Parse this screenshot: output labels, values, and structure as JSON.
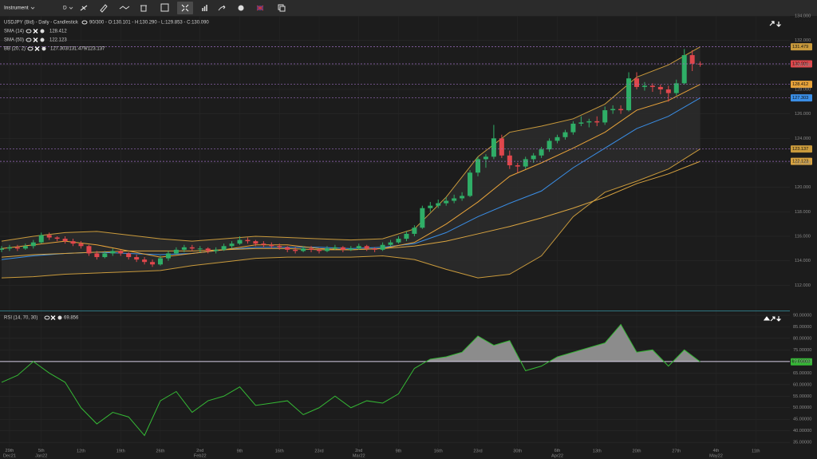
{
  "toolbar": {
    "instrument": "Instrument",
    "timeframe": "D"
  },
  "chart_data": [
    {
      "type": "candlestick",
      "title": "USDJPY (Bid) - Daily - Candlestick",
      "ohlc_info": "90/300 - O:130.101 - H:130.290 - L:129.853 - C:130.090",
      "categories": [
        null,
        "29th Dec21",
        null,
        null,
        null,
        "5th Jan22",
        null,
        null,
        null,
        null,
        "12th",
        null,
        null,
        null,
        null,
        "19th",
        null,
        null,
        null,
        null,
        "26th",
        null,
        null,
        null,
        null,
        "2nd Feb22",
        null,
        null,
        null,
        null,
        "9th",
        null,
        null,
        null,
        null,
        "16th",
        null,
        null,
        null,
        null,
        "23rd",
        null,
        null,
        null,
        null,
        "2nd Mar22",
        null,
        null,
        null,
        null,
        "9th",
        null,
        null,
        null,
        null,
        "16th",
        null,
        null,
        null,
        null,
        "23rd",
        null,
        null,
        null,
        null,
        "30th",
        null,
        null,
        null,
        null,
        "6th Apr22",
        null,
        null,
        null,
        null,
        "13th",
        null,
        null,
        null,
        null,
        "20th",
        null,
        null,
        null,
        null,
        "27th",
        null,
        null,
        null,
        null,
        "4th May22",
        null,
        null,
        null,
        null,
        "11th"
      ],
      "open": [
        114.9,
        115.0,
        115.1,
        115.0,
        115.2,
        115.5,
        116.1,
        115.9,
        115.8,
        115.6,
        115.4,
        115.2,
        114.6,
        114.3,
        114.6,
        114.8,
        114.6,
        114.3,
        114.1,
        113.9,
        113.7,
        114.2,
        114.6,
        114.9,
        115.1,
        115.0,
        115.0,
        114.8,
        114.9,
        115.2,
        115.4,
        115.7,
        115.6,
        115.4,
        115.3,
        115.2,
        115.1,
        114.9,
        114.8,
        115.0,
        114.9,
        114.8,
        115.0,
        115.1,
        114.9,
        115.0,
        115.2,
        115.0,
        114.9,
        115.3,
        115.5,
        115.8,
        116.2,
        116.7,
        118.3,
        118.5,
        118.7,
        118.9,
        119.1,
        119.3,
        121.2,
        122.3,
        122.5,
        124.0,
        122.6,
        121.8,
        121.7,
        122.3,
        122.6,
        123.1,
        123.8,
        124.1,
        124.5,
        125.2,
        125.3,
        125.4,
        125.3,
        126.3,
        126.4,
        126.3,
        128.9,
        128.2,
        128.3,
        128.2,
        128.0,
        127.7,
        128.5,
        130.8,
        130.101,
        null,
        null,
        null,
        null,
        null,
        null,
        null
      ],
      "high": [
        115.2,
        115.3,
        115.3,
        115.4,
        115.7,
        116.3,
        116.3,
        116.0,
        116.0,
        115.8,
        115.6,
        115.3,
        114.8,
        114.8,
        115.0,
        114.9,
        114.7,
        114.5,
        114.3,
        114.1,
        114.4,
        114.8,
        115.1,
        115.3,
        115.3,
        115.2,
        115.1,
        115.1,
        115.4,
        115.6,
        116.0,
        115.9,
        115.7,
        115.6,
        115.5,
        115.4,
        115.2,
        115.1,
        115.2,
        115.2,
        115.0,
        115.2,
        115.3,
        115.2,
        115.2,
        115.4,
        115.3,
        115.1,
        115.5,
        115.7,
        116.0,
        116.4,
        116.9,
        118.5,
        118.8,
        119.0,
        119.2,
        119.4,
        119.6,
        121.4,
        122.5,
        122.7,
        125.1,
        124.3,
        123.0,
        122.0,
        122.5,
        122.8,
        123.3,
        124.0,
        124.3,
        124.7,
        125.4,
        125.8,
        125.6,
        125.8,
        126.6,
        126.7,
        126.7,
        129.4,
        129.4,
        128.6,
        128.5,
        128.4,
        128.3,
        128.8,
        131.3,
        131.2,
        130.29,
        null,
        null,
        null,
        null,
        null,
        null,
        null
      ],
      "low": [
        114.7,
        114.8,
        114.8,
        114.9,
        115.0,
        115.4,
        115.7,
        115.6,
        115.4,
        115.2,
        115.0,
        114.4,
        114.1,
        114.2,
        114.4,
        114.4,
        114.1,
        113.9,
        113.7,
        113.5,
        113.6,
        114.0,
        114.5,
        114.7,
        114.8,
        114.7,
        114.6,
        114.6,
        114.8,
        115.0,
        115.3,
        115.4,
        115.2,
        115.1,
        115.0,
        114.9,
        114.7,
        114.6,
        114.7,
        114.7,
        114.6,
        114.7,
        114.9,
        114.7,
        114.8,
        114.9,
        114.8,
        114.7,
        114.8,
        115.2,
        115.4,
        115.6,
        116.0,
        116.6,
        118.0,
        118.3,
        118.5,
        118.7,
        118.9,
        119.2,
        120.9,
        121.6,
        122.3,
        122.4,
        121.5,
        121.2,
        121.5,
        122.0,
        122.4,
        122.9,
        123.6,
        123.9,
        124.3,
        125.0,
        124.9,
        125.0,
        125.1,
        126.0,
        126.0,
        126.2,
        128.0,
        127.9,
        127.8,
        127.6,
        127.0,
        127.5,
        128.4,
        129.5,
        129.853,
        null,
        null,
        null,
        null,
        null,
        null,
        null
      ],
      "close": [
        115.0,
        115.1,
        115.0,
        115.2,
        115.5,
        116.1,
        115.9,
        115.8,
        115.6,
        115.4,
        115.2,
        114.6,
        114.3,
        114.6,
        114.8,
        114.6,
        114.3,
        114.1,
        113.9,
        113.7,
        114.2,
        114.6,
        114.9,
        115.1,
        115.0,
        115.0,
        114.8,
        114.9,
        115.2,
        115.4,
        115.7,
        115.6,
        115.4,
        115.3,
        115.2,
        115.1,
        114.9,
        114.8,
        115.0,
        114.9,
        114.8,
        115.0,
        115.1,
        114.9,
        115.0,
        115.2,
        115.0,
        114.9,
        115.3,
        115.5,
        115.8,
        116.2,
        116.7,
        118.3,
        118.5,
        118.7,
        118.9,
        119.1,
        119.3,
        121.2,
        122.3,
        122.5,
        124.0,
        122.6,
        121.8,
        121.7,
        122.3,
        122.6,
        123.1,
        123.8,
        124.1,
        124.5,
        125.2,
        125.3,
        125.4,
        125.3,
        126.3,
        126.4,
        126.3,
        128.9,
        128.2,
        128.3,
        128.2,
        128.0,
        127.7,
        128.5,
        130.8,
        130.1,
        130.09,
        null,
        null,
        null,
        null,
        null,
        null,
        null
      ],
      "up_color": "#2fae67",
      "down_color": "#e0474c",
      "current_price": 130.086,
      "current_price_color": "#e0474c",
      "ylim": [
        110,
        134
      ],
      "yticks": [
        {
          "value": 112,
          "label": "112.000"
        },
        {
          "value": 114,
          "label": "114.000"
        },
        {
          "value": 116,
          "label": "116.000"
        },
        {
          "value": 118,
          "label": "118.000"
        },
        {
          "value": 120,
          "label": "120.000"
        },
        {
          "value": 122,
          "label": "122.000"
        },
        {
          "value": 124,
          "label": "124.000"
        },
        {
          "value": 126,
          "label": "126.000"
        },
        {
          "value": 128,
          "label": "128.000"
        },
        {
          "value": 130,
          "label": "130.000"
        },
        {
          "value": 132,
          "label": "132.000"
        },
        {
          "value": 134,
          "label": "134.000"
        }
      ],
      "series": [
        {
          "name": "SMA (14)",
          "color": "#e8a33a",
          "x": [
            0,
            4,
            8,
            12,
            16,
            20,
            24,
            28,
            32,
            36,
            40,
            44,
            48,
            52,
            56,
            60,
            64,
            68,
            72,
            76,
            80,
            84,
            88
          ],
          "values": [
            115.0,
            115.3,
            115.6,
            115.3,
            114.8,
            114.3,
            114.6,
            114.9,
            115.3,
            115.3,
            115.0,
            114.9,
            115.0,
            115.5,
            117.0,
            118.8,
            120.9,
            122.0,
            123.2,
            124.5,
            126.3,
            127.1,
            128.412
          ]
        },
        {
          "name": "SMA (50)",
          "color": "#d9a441",
          "x": [
            0,
            4,
            8,
            12,
            16,
            20,
            24,
            28,
            32,
            36,
            40,
            44,
            48,
            52,
            56,
            60,
            64,
            68,
            72,
            76,
            80,
            84,
            88
          ],
          "values": [
            114.3,
            114.5,
            114.6,
            114.7,
            114.8,
            114.8,
            114.8,
            114.9,
            115.0,
            115.0,
            114.9,
            114.9,
            115.0,
            115.2,
            115.6,
            116.2,
            116.8,
            117.5,
            118.3,
            119.2,
            120.3,
            121.1,
            122.123
          ]
        }
      ],
      "bands": {
        "name": "BB (20, 2)",
        "legend_value": "127.303/131.479/123.137",
        "fill": "#2b2b2b",
        "x": [
          0,
          4,
          8,
          12,
          16,
          20,
          24,
          28,
          32,
          36,
          40,
          44,
          48,
          52,
          56,
          60,
          64,
          68,
          72,
          76,
          80,
          84,
          88
        ],
        "upper": {
          "color": "#c99a3c",
          "values": [
            115.6,
            116.0,
            116.3,
            116.4,
            116.1,
            115.8,
            115.6,
            115.8,
            116.0,
            115.9,
            115.8,
            115.7,
            115.8,
            116.6,
            119.2,
            122.5,
            124.5,
            125.0,
            125.6,
            126.8,
            129.0,
            130.0,
            131.479
          ]
        },
        "middle": {
          "color": "#3a8ee6",
          "values": [
            114.1,
            114.4,
            114.6,
            114.7,
            114.6,
            114.5,
            114.6,
            114.9,
            115.1,
            115.1,
            115.1,
            115.0,
            115.1,
            115.4,
            116.3,
            117.6,
            118.7,
            119.7,
            121.6,
            123.2,
            124.8,
            125.8,
            127.303
          ]
        },
        "lower": {
          "color": "#c99a3c",
          "values": [
            112.6,
            112.7,
            112.9,
            113.0,
            113.1,
            113.2,
            113.6,
            113.9,
            114.2,
            114.3,
            114.3,
            114.3,
            114.4,
            114.1,
            113.3,
            112.6,
            112.9,
            114.4,
            117.6,
            119.6,
            120.5,
            121.5,
            123.137
          ]
        }
      }
    },
    {
      "type": "line",
      "name": "RSI (14, 70, 30)",
      "legend_value": "69.856",
      "x": [
        0,
        2,
        4,
        6,
        8,
        10,
        12,
        14,
        16,
        18,
        20,
        22,
        24,
        26,
        28,
        30,
        32,
        34,
        36,
        38,
        40,
        42,
        44,
        46,
        48,
        50,
        52,
        54,
        56,
        58,
        60,
        62,
        64,
        66,
        68,
        70,
        72,
        74,
        76,
        78,
        80,
        82,
        84,
        86,
        88
      ],
      "values": [
        61,
        64,
        70,
        65,
        61,
        50,
        43,
        48,
        46,
        38,
        53,
        57,
        48,
        53,
        55,
        59,
        51,
        52,
        53,
        47,
        50,
        55,
        50,
        53,
        52,
        56,
        67,
        71,
        72,
        74,
        81,
        77,
        79,
        66,
        68,
        72,
        74,
        76,
        78,
        86,
        74,
        75,
        68,
        75,
        69.85603
      ],
      "color": "#35b835",
      "level": 70,
      "level_color": "#d8d0e8",
      "overbought_fill": "#8c8c8c",
      "value_box_color": "#35b835",
      "ylim": [
        33,
        91
      ],
      "yticks": [
        {
          "value": 35,
          "label": "35.00000"
        },
        {
          "value": 40,
          "label": "40.00000"
        },
        {
          "value": 45,
          "label": "45.00000"
        },
        {
          "value": 50,
          "label": "50.00000"
        },
        {
          "value": 55,
          "label": "55.00000"
        },
        {
          "value": 60,
          "label": "60.00000"
        },
        {
          "value": 65,
          "label": "65.00000"
        },
        {
          "value": 70,
          "label": "70.00000"
        },
        {
          "value": 75,
          "label": "75.00000"
        },
        {
          "value": 80,
          "label": "80.00000"
        },
        {
          "value": 85,
          "label": "85.00000"
        },
        {
          "value": 90,
          "label": "90.00000"
        }
      ]
    }
  ]
}
